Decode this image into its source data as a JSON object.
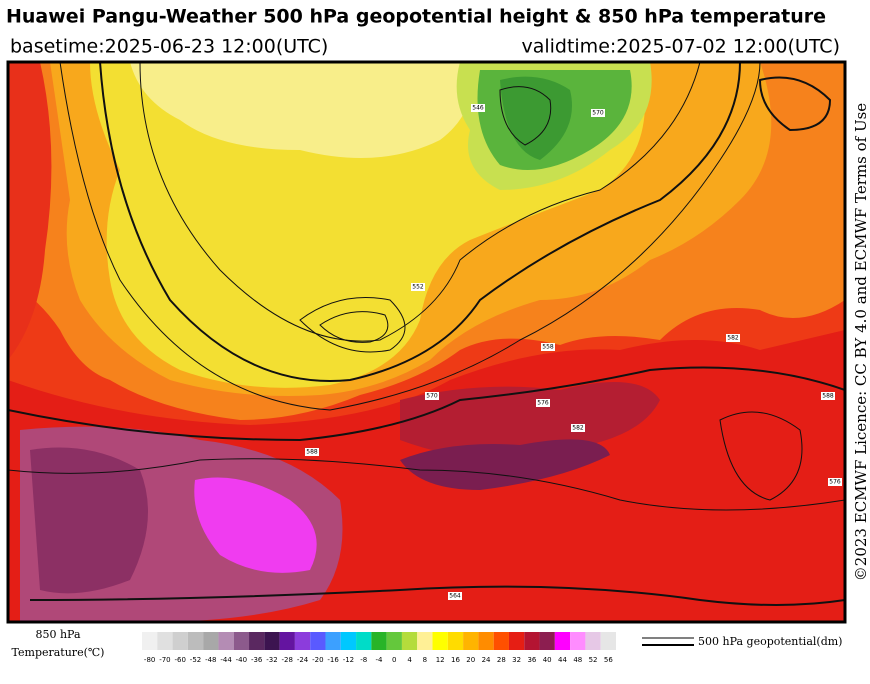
{
  "header": {
    "title": "Huawei Pangu-Weather 500 hPa geopotential height & 850 hPa temperature",
    "basetime": "basetime:2025-06-23 12:00(UTC)",
    "validtime": "validtime:2025-07-02 12:00(UTC)"
  },
  "license": "©2023 ECMWF Licence: CC BY 4.0 and ECMWF Terms of Use",
  "map": {
    "contour_labels": [
      "570",
      "570",
      "576",
      "582",
      "588",
      "564",
      "558",
      "552",
      "546",
      "588",
      "582",
      "576"
    ]
  },
  "colorbar": {
    "title_lines": [
      "850 hPa",
      "Temperature(℃)"
    ],
    "ticks": [
      -80,
      -70,
      -60,
      -52,
      -48,
      -44,
      -40,
      -36,
      -32,
      -28,
      -24,
      -20,
      -16,
      -12,
      -8,
      -4,
      0,
      4,
      8,
      12,
      16,
      20,
      24,
      28,
      32,
      36,
      40,
      44,
      48,
      52,
      56
    ],
    "colors": [
      "#f0f0f0",
      "#e0e0e0",
      "#cfcfcf",
      "#bcbcbc",
      "#a8a8a8",
      "#b48cb4",
      "#8c5a8c",
      "#5a2860",
      "#3c1450",
      "#6414a0",
      "#8c3cdc",
      "#5a5aff",
      "#3ca0ff",
      "#00c8ff",
      "#00dcc8",
      "#28b428",
      "#64c83c",
      "#b4dc3c",
      "#fff096",
      "#ffff00",
      "#ffdc00",
      "#ffb400",
      "#ff8c00",
      "#ff5000",
      "#e61e14",
      "#b41432",
      "#8c1e50",
      "#ff00ff",
      "#ff8cff",
      "#e6c8e6",
      "#e6e6e6"
    ]
  },
  "legend": {
    "label": "500 hPa geopotential(dm)"
  }
}
